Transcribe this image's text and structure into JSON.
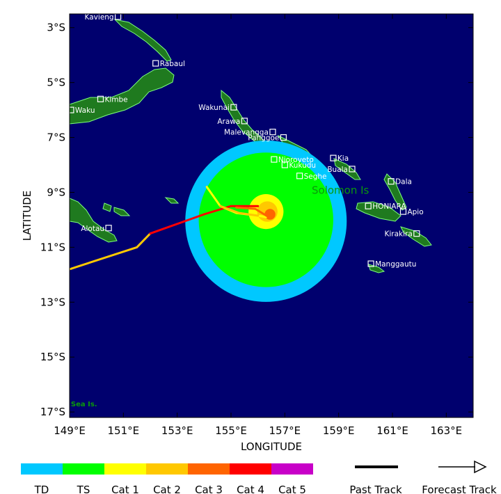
{
  "map": {
    "x_axis_title": "LONGITUDE",
    "y_axis_title": "LATITUDE",
    "lon_range": [
      149,
      164
    ],
    "lat_range": [
      -17.2,
      -2.5
    ],
    "colors": {
      "ocean": "#00006e",
      "land": "#1f7a1f",
      "coast": "#7dff7d",
      "city_box": "#ffffff",
      "region_label": "#0a9a0a"
    },
    "lon_ticks": [
      {
        "value": 149,
        "label": "149°E"
      },
      {
        "value": 151,
        "label": "151°E"
      },
      {
        "value": 153,
        "label": "153°E"
      },
      {
        "value": 155,
        "label": "155°E"
      },
      {
        "value": 157,
        "label": "157°E"
      },
      {
        "value": 159,
        "label": "159°E"
      },
      {
        "value": 161,
        "label": "161°E"
      },
      {
        "value": 163,
        "label": "163°E"
      }
    ],
    "lat_ticks": [
      {
        "value": -3,
        "label": "3°S"
      },
      {
        "value": -5,
        "label": "5°S"
      },
      {
        "value": -7,
        "label": "7°S"
      },
      {
        "value": -9,
        "label": "9°S"
      },
      {
        "value": -11,
        "label": "11°S"
      },
      {
        "value": -13,
        "label": "13°S"
      },
      {
        "value": -15,
        "label": "15°S"
      },
      {
        "value": -17,
        "label": "17°S"
      }
    ],
    "region_labels": [
      {
        "text": "Solomon Is",
        "lon": 158.0,
        "lat": -9.05,
        "size": "large"
      },
      {
        "text": "Sea Is.",
        "lon": 149.05,
        "lat": -16.8,
        "size": "small"
      }
    ],
    "cities": [
      {
        "name": "Kavieng",
        "lon": 150.8,
        "lat": -2.6,
        "label_side": "left"
      },
      {
        "name": "Rabaul",
        "lon": 152.2,
        "lat": -4.3,
        "label_side": "right"
      },
      {
        "name": "Kimbe",
        "lon": 150.15,
        "lat": -5.6,
        "label_side": "right"
      },
      {
        "name": "Waku",
        "lon": 149.05,
        "lat": -6.0,
        "label_side": "right"
      },
      {
        "name": "Wakunai",
        "lon": 155.1,
        "lat": -5.9,
        "label_side": "left"
      },
      {
        "name": "Arawa",
        "lon": 155.5,
        "lat": -6.4,
        "label_side": "left"
      },
      {
        "name": "Malevangga",
        "lon": 156.55,
        "lat": -6.8,
        "label_side": "left"
      },
      {
        "name": "Panggoe",
        "lon": 156.95,
        "lat": -7.0,
        "label_side": "left"
      },
      {
        "name": "Njoroveto",
        "lon": 156.6,
        "lat": -7.8,
        "label_side": "right"
      },
      {
        "name": "Kukudu",
        "lon": 157.0,
        "lat": -8.0,
        "label_side": "right"
      },
      {
        "name": "Seghe",
        "lon": 157.55,
        "lat": -8.4,
        "label_side": "right"
      },
      {
        "name": "Kia",
        "lon": 158.8,
        "lat": -7.75,
        "label_side": "right"
      },
      {
        "name": "Buala",
        "lon": 159.5,
        "lat": -8.15,
        "label_side": "left"
      },
      {
        "name": "Dala",
        "lon": 160.95,
        "lat": -8.6,
        "label_side": "right"
      },
      {
        "name": "HONIARA",
        "lon": 160.1,
        "lat": -9.5,
        "label_side": "right"
      },
      {
        "name": "Apio",
        "lon": 161.4,
        "lat": -9.7,
        "label_side": "right"
      },
      {
        "name": "Kirakira",
        "lon": 161.9,
        "lat": -10.5,
        "label_side": "left"
      },
      {
        "name": "Manggautu",
        "lon": 160.2,
        "lat": -11.6,
        "label_side": "right"
      },
      {
        "name": "Alotau",
        "lon": 150.45,
        "lat": -10.3,
        "label_side": "left"
      }
    ],
    "storm": {
      "center": {
        "lon": 156.3,
        "lat": -9.7
      },
      "rings": [
        {
          "category": "TD",
          "radius_deg": 3.0,
          "offset": [
            0.0,
            -0.35
          ]
        },
        {
          "category": "TS",
          "radius_deg": 2.5,
          "offset": [
            0.0,
            -0.3
          ]
        },
        {
          "category": "Cat 1",
          "radius_deg": 0.65,
          "offset": [
            0.0,
            0.0
          ]
        },
        {
          "category": "Cat 2",
          "radius_deg": 0.38,
          "offset": [
            0.05,
            0.0
          ]
        },
        {
          "category": "Cat 3",
          "radius_deg": 0.2,
          "offset": [
            0.15,
            -0.1
          ]
        }
      ]
    },
    "tracks": [
      {
        "category": "Cat 2",
        "points": [
          [
            149.0,
            -11.8
          ],
          [
            151.5,
            -11.0
          ],
          [
            152.0,
            -10.5
          ]
        ]
      },
      {
        "category": "Cat 4",
        "points": [
          [
            152.0,
            -10.5
          ],
          [
            154.0,
            -9.8
          ],
          [
            155.0,
            -9.5
          ],
          [
            156.0,
            -9.5
          ]
        ]
      },
      {
        "category": "Cat 1",
        "points": [
          [
            154.1,
            -8.8
          ],
          [
            154.6,
            -9.5
          ],
          [
            155.2,
            -9.75
          ],
          [
            156.0,
            -9.85
          ],
          [
            156.3,
            -9.9
          ]
        ]
      },
      {
        "category": "Cat 2",
        "points": [
          [
            154.6,
            -9.5
          ],
          [
            155.3,
            -9.75
          ],
          [
            156.0,
            -9.85
          ]
        ]
      },
      {
        "category": "Cat 3",
        "points": [
          [
            155.2,
            -9.55
          ],
          [
            155.9,
            -9.6
          ],
          [
            156.4,
            -9.9
          ]
        ]
      }
    ]
  },
  "legend": {
    "categories": [
      {
        "label": "TD",
        "color": "#00c8ff"
      },
      {
        "label": "TS",
        "color": "#00ff00"
      },
      {
        "label": "Cat 1",
        "color": "#ffff00"
      },
      {
        "label": "Cat 2",
        "color": "#ffc800"
      },
      {
        "label": "Cat 3",
        "color": "#ff6400"
      },
      {
        "label": "Cat 4",
        "color": "#ff0000"
      },
      {
        "label": "Cat 5",
        "color": "#c800c8"
      }
    ],
    "past_track_label": "Past Track",
    "forecast_track_label": "Forecast Track"
  }
}
